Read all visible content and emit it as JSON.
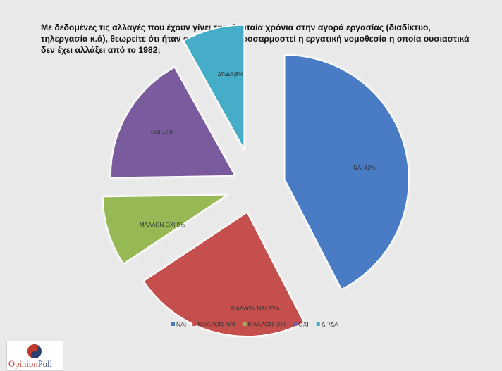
{
  "title_lines": [
    "Με δεδομένες τις αλλαγές που έχουν γίνει τα τελευταία χρόνια στην αγορά εργασίας (διαδίκτυο,",
    "τηλεργασία κ.ά), θεωρείτε ότι ήταν  αναγκαίο να προσαρμοστεί η εργατική νομοθεσία η οποία ουσιαστικά",
    "δεν έχει αλλάξει από το 1982;"
  ],
  "chart_data": {
    "type": "pie",
    "exploded": true,
    "legend_position": "bottom",
    "slices": [
      {
        "name": "ΝΑΙ",
        "value": 42,
        "label": "ΝΑΙ;42%",
        "color": "#4a7cc4"
      },
      {
        "name": "ΜΑΛΛΟΝ ΝΑΙ",
        "value": 23,
        "label": "ΜΑΛΛΟΝ ΝΑΙ;23%",
        "color": "#c4504e"
      },
      {
        "name": "ΜΑΛΛΟΝ ΟΧΙ",
        "value": 9,
        "label": "ΜΑΛΛΟΝ ΟΧΙ;9%",
        "color": "#97b955"
      },
      {
        "name": "ΟΧΙ",
        "value": 17,
        "label": "ΟΧΙ;17%",
        "color": "#7a5c9e"
      },
      {
        "name": "ΔΓ/ΔΑ",
        "value": 8,
        "label": "ΔΓ/ΔΑ;8%",
        "color": "#45adc8"
      }
    ]
  },
  "logo": {
    "part1": "Opinion",
    "part2": "Poll",
    "mark_colors": [
      "#c0392b",
      "#2c3e6e"
    ]
  }
}
